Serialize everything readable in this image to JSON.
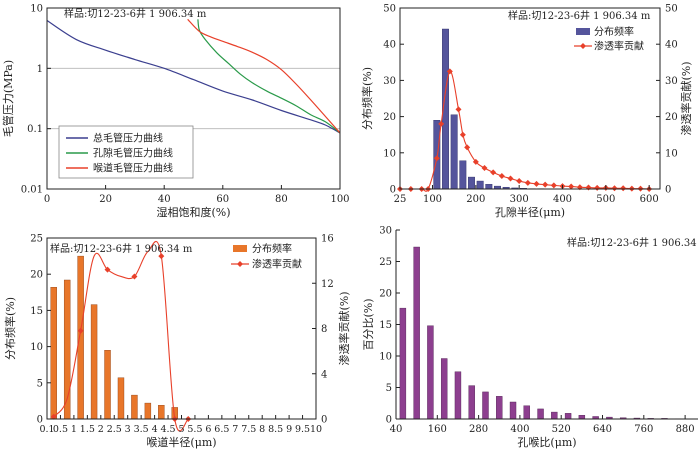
{
  "chart_data": [
    {
      "type": "line",
      "xlabel": "湿相饱和度(%)",
      "ylabel": "毛管压力(MPa)",
      "xlim": [
        0,
        100
      ],
      "ylim": [
        0.01,
        10
      ],
      "yscale": "log",
      "x_ticks": [
        "0",
        "20",
        "40",
        "60",
        "80",
        "100"
      ],
      "y_ticks": [
        "0.01",
        "0.1",
        "1",
        "10"
      ],
      "annotation": "样品:切12-23-6井 1 906.34 m",
      "grid": "horizontal major",
      "legend": "bottom-left",
      "series": [
        {
          "name": "总毛管压力曲线",
          "color": "#3b3f8f",
          "x": [
            0,
            10,
            20,
            30,
            40,
            50,
            60,
            70,
            80,
            90,
            95,
            100
          ],
          "y": [
            6.2,
            3.0,
            2.0,
            1.4,
            1.0,
            0.65,
            0.42,
            0.3,
            0.2,
            0.14,
            0.115,
            0.085
          ]
        },
        {
          "name": "孔隙毛管压力曲线",
          "color": "#2a9a4a",
          "x": [
            51.5,
            52,
            54,
            58,
            62,
            66,
            70,
            75,
            80,
            85,
            90,
            95,
            100
          ],
          "y": [
            6.5,
            4.3,
            3.0,
            1.8,
            1.2,
            0.8,
            0.58,
            0.42,
            0.32,
            0.24,
            0.17,
            0.13,
            0.085
          ]
        },
        {
          "name": "喉道毛管压力曲线",
          "color": "#e8402a",
          "x": [
            48,
            52,
            56,
            60,
            65,
            70,
            75,
            80,
            85,
            90,
            95,
            100
          ],
          "y": [
            6.5,
            4.1,
            3.3,
            2.8,
            2.3,
            1.85,
            1.4,
            0.95,
            0.55,
            0.3,
            0.16,
            0.085
          ]
        }
      ]
    },
    {
      "type": "bar",
      "xlabel": "孔隙半径(μm)",
      "ylabel": "分布频率(%)",
      "y2label": "渗透率贡献(%)",
      "xlim": [
        25,
        625
      ],
      "ylim": [
        0,
        50
      ],
      "y2lim": [
        0,
        50
      ],
      "x_ticks": [
        "25",
        "100",
        "200",
        "300",
        "400",
        "500",
        "600"
      ],
      "y_ticks": [
        "0",
        "10",
        "20",
        "30",
        "40",
        "50"
      ],
      "y2_ticks": [
        "0",
        "10",
        "20",
        "30",
        "40",
        "50"
      ],
      "annotation": "样品:切12-23-6井 1 906.34 m",
      "legend": "top-right",
      "series": [
        {
          "name": "分布频率",
          "color": "#55559c",
          "x": [
            110,
            130,
            150,
            170,
            190,
            210,
            230,
            250,
            270,
            290,
            310,
            330,
            350
          ],
          "values": [
            19.0,
            44.2,
            20.5,
            7.8,
            3.3,
            2.2,
            1.3,
            0.8,
            0.5,
            0.3,
            0.2,
            0.1,
            0.1
          ]
        },
        {
          "name": "渗透率贡献",
          "color": "#e8402a",
          "x": [
            25,
            50,
            75,
            90,
            110,
            120,
            140,
            160,
            170,
            180,
            200,
            220,
            240,
            260,
            280,
            300,
            320,
            340,
            360,
            380,
            400,
            420,
            440,
            460,
            480,
            500,
            520,
            540,
            560,
            580,
            600
          ],
          "values": [
            0,
            0,
            0,
            0,
            8.5,
            18,
            32.5,
            22,
            15,
            11.5,
            7.5,
            5.8,
            4.6,
            3.6,
            2.9,
            2.2,
            1.7,
            1.4,
            1.2,
            1.0,
            0.8,
            0.7,
            0.5,
            0.4,
            0.3,
            0.3,
            0.2,
            0.2,
            0.1,
            0.1,
            0
          ]
        }
      ]
    },
    {
      "type": "bar",
      "xlabel": "喉道半径(μm)",
      "ylabel": "分布频率(%)",
      "y2label": "渗透率贡献(%)",
      "categories": [
        "0.1",
        "0.5",
        "1",
        "1.5",
        "2",
        "2.5",
        "3",
        "3.5",
        "4",
        "4.5",
        "5",
        "5.5",
        "6",
        "6.5",
        "7",
        "7.5",
        "8",
        "8.5",
        "9",
        "9.5",
        "10"
      ],
      "ylim": [
        0,
        25
      ],
      "y2lim": [
        0,
        16
      ],
      "y_ticks": [
        "0",
        "5",
        "10",
        "15",
        "20",
        "25"
      ],
      "y2_ticks": [
        "0",
        "4",
        "8",
        "12",
        "16"
      ],
      "annotation": "样品:切12-23-6井 1 906.34 m",
      "legend": "top-right",
      "series": [
        {
          "name": "分布频率",
          "color": "#e8762a",
          "x": [
            0.3,
            0.75,
            1.25,
            1.75,
            2.25,
            2.75,
            3.25,
            3.75,
            4.25,
            4.75,
            5.25,
            5.75,
            6.25,
            6.75
          ],
          "values": [
            18.2,
            19.2,
            22.5,
            15.8,
            9.5,
            5.7,
            3.3,
            2.2,
            1.9,
            1.6,
            0,
            0,
            0,
            0
          ]
        },
        {
          "name": "渗透率贡献",
          "color": "#e8402a",
          "x": [
            0.3,
            0.75,
            1.25,
            1.75,
            2.25,
            2.75,
            3.25,
            3.75,
            4.25,
            4.75,
            5.25
          ],
          "values": [
            0.2,
            1.8,
            7.8,
            14.4,
            13.2,
            12.6,
            12.6,
            14.8,
            14.4,
            0,
            0
          ]
        }
      ]
    },
    {
      "type": "bar",
      "xlabel": "孔喉比(μm)",
      "ylabel": "百分比(%)",
      "xlim": [
        40,
        900
      ],
      "ylim": [
        0,
        30
      ],
      "x_ticks": [
        "40",
        "160",
        "280",
        "400",
        "520",
        "640",
        "760",
        "880"
      ],
      "y_ticks": [
        "0",
        "5",
        "10",
        "15",
        "20",
        "25",
        "30"
      ],
      "annotation": "样品:切12-23-6井 1 906.34 m",
      "series": [
        {
          "name": "",
          "color": "#8d3f8f",
          "x": [
            60,
            100,
            140,
            180,
            220,
            260,
            300,
            340,
            380,
            420,
            460,
            500,
            540,
            580,
            620,
            660,
            700,
            740,
            780,
            820,
            860
          ],
          "values": [
            17.6,
            27.3,
            14.8,
            9.6,
            7.5,
            5.3,
            4.3,
            3.6,
            2.7,
            2.1,
            1.6,
            1.1,
            0.9,
            0.6,
            0.4,
            0.3,
            0.2,
            0.15,
            0.1,
            0.1,
            0.05
          ]
        }
      ]
    }
  ]
}
